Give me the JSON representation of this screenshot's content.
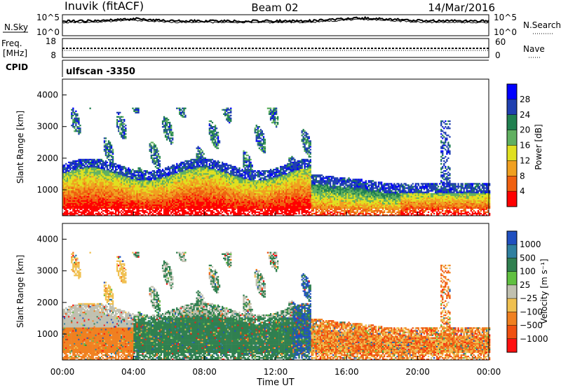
{
  "header": {
    "station": "Inuvik (fitACF)",
    "beam": "Beam 02",
    "date": "14/Mar/2016"
  },
  "top_panels": {
    "nsky_label": "N.Sky",
    "nsky_top": "10^5",
    "nsky_bottom": "10^0",
    "nsearch_top": "10^5",
    "nsearch_bottom": "10^0",
    "nsearch_label": "N.Search",
    "freq_label_1": "Freq.",
    "freq_label_2": "[MHz]",
    "freq_top": "18",
    "freq_bottom": "8",
    "nave_top": "60",
    "nave_bottom": "0",
    "nave_label": "Nave",
    "cpid_label": "CPID",
    "cpid_value": "ulfscan -3350"
  },
  "chart_data": [
    {
      "type": "heatmap",
      "name": "power",
      "ylabel": "Slant Range [km]",
      "ylim": [
        180,
        4500
      ],
      "yticks": [
        "1000",
        "2000",
        "3000",
        "4000"
      ],
      "xlim_hours": [
        0,
        24
      ],
      "colorbar_label": "Power [dB]",
      "colorbar_ticks": [
        "4",
        "8",
        "12",
        "16",
        "20",
        "24",
        "28"
      ],
      "colorbar_colors": [
        "#0000ff",
        "#2040b0",
        "#208050",
        "#60b060",
        "#e0e020",
        "#f0a020",
        "#f06010",
        "#ff0000"
      ]
    },
    {
      "type": "heatmap",
      "name": "velocity",
      "ylabel": "Slant Range [km]",
      "ylim": [
        180,
        4500
      ],
      "yticks": [
        "1000",
        "2000",
        "3000",
        "4000"
      ],
      "xlim_hours": [
        0,
        24
      ],
      "colorbar_label": "Velocity [m s⁻¹]",
      "colorbar_ticks": [
        "1000",
        "500",
        "100",
        "25",
        "−25",
        "−100",
        "−500",
        "−1000"
      ],
      "colorbar_colors": [
        "#2050c0",
        "#3080a0",
        "#308050",
        "#60c040",
        "#c0c0b0",
        "#f0c050",
        "#f08020",
        "#f05010",
        "#ff1010"
      ]
    }
  ],
  "xaxis": {
    "ticks": [
      "00:00",
      "04:00",
      "08:00",
      "12:00",
      "16:00",
      "20:00",
      "00:00"
    ],
    "label": "Time UT"
  }
}
